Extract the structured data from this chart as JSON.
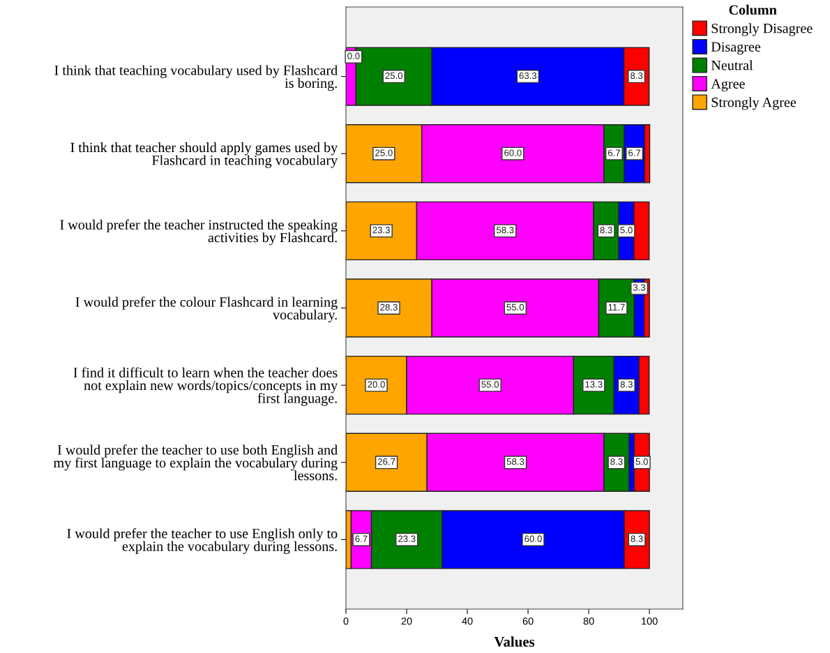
{
  "chart_data": {
    "type": "bar",
    "orientation": "horizontal",
    "stacked": true,
    "xlabel": "Values",
    "legend_title": "Column",
    "legend": "top right",
    "grid": false,
    "categories": [
      "I think that teaching vocabulary used by Flashcard\nis boring.",
      "I think that teacher should apply games used by\nFlashcard in teaching vocabulary",
      "I would prefer the teacher instructed the speaking\nactivities by Flashcard.",
      "I would prefer the colour Flashcard in learning\nvocabulary.",
      "I find it difficult to learn when the teacher does\nnot explain new words/topics/concepts in my\nfirst language.",
      "I would prefer the teacher to use both English and\nmy first language to explain the vocabulary during\nlessons.",
      "I would prefer the teacher to use English only to\nexplain the vocabulary during lessons."
    ],
    "annotations": [
      {
        "text": "0.0",
        "x": 0,
        "y": "I think that teaching vocabulary used by Flashcard\nis boring."
      }
    ],
    "xlim": [
      0,
      111
    ],
    "xticks": [
      0,
      20,
      40,
      60,
      80,
      100
    ],
    "series": [
      {
        "name": "Strongly Agree",
        "color": "#ffa500",
        "values": [
          0,
          25.0,
          23.3,
          28.3,
          20.0,
          26.7,
          1.7
        ],
        "value_labels": [
          null,
          "25.0",
          "23.3",
          "28.3",
          "20.0",
          "26.7",
          null
        ]
      },
      {
        "name": "Agree",
        "color": "#ff00ff",
        "values": [
          3.3,
          60.0,
          58.3,
          55.0,
          55.0,
          58.3,
          6.7
        ],
        "value_labels": [
          null,
          "60.0",
          "58.3",
          "55.0",
          "55.0",
          "58.3",
          "6.7"
        ]
      },
      {
        "name": "Neutral",
        "color": "#008000",
        "values": [
          25.0,
          6.7,
          8.3,
          11.7,
          13.3,
          8.3,
          23.3
        ],
        "value_labels": [
          "25.0",
          "6.7",
          "8.3",
          "11.7",
          "13.3",
          "8.3",
          "23.3"
        ]
      },
      {
        "name": "Disagree",
        "color": "#0000ff",
        "values": [
          63.3,
          6.7,
          5.0,
          3.3,
          8.3,
          1.7,
          60.0
        ],
        "value_labels": [
          "63.3",
          "6.7",
          "5.0",
          "3.3",
          "8.3",
          null,
          "60.0"
        ]
      },
      {
        "name": "Strongly Disagree",
        "color": "#ff0000",
        "values": [
          8.3,
          1.7,
          5.0,
          1.7,
          3.3,
          5.0,
          8.3
        ],
        "value_labels": [
          "8.3",
          null,
          null,
          null,
          null,
          "5.0",
          "8.3"
        ]
      }
    ]
  }
}
